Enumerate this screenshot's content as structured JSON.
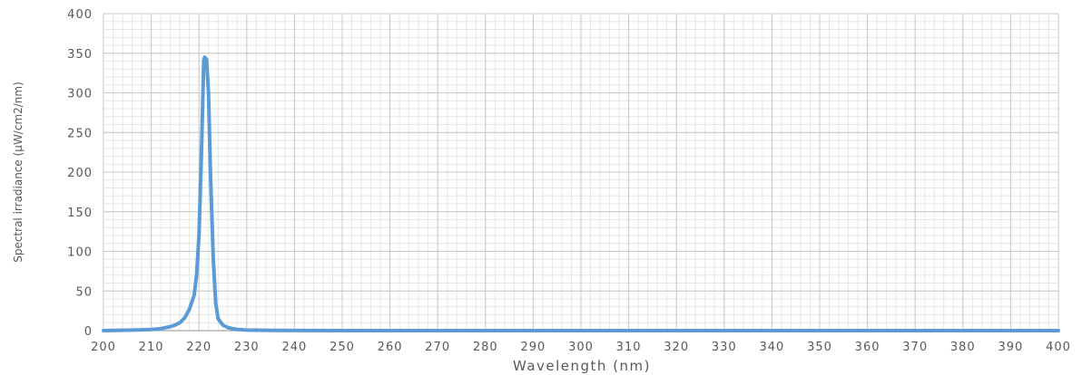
{
  "chart_data": {
    "type": "line",
    "title": "",
    "xlabel": "Wavelength (nm)",
    "ylabel": "Spectral irradiance (μW/cm2/nm)",
    "xlim": [
      200,
      400
    ],
    "ylim": [
      0,
      400
    ],
    "x_ticks": [
      200,
      210,
      220,
      230,
      240,
      250,
      260,
      270,
      280,
      290,
      300,
      310,
      320,
      330,
      340,
      350,
      360,
      370,
      380,
      390,
      400
    ],
    "y_ticks": [
      0,
      50,
      100,
      150,
      200,
      250,
      300,
      350,
      400
    ],
    "grid": {
      "major": true,
      "minor": true,
      "x_minor_step": 2,
      "y_minor_step": 10
    },
    "series": [
      {
        "name": "",
        "color": "#5b9bd5",
        "x": [
          200,
          205,
          208,
          210,
          212,
          214,
          215,
          216,
          217,
          218,
          219,
          219.5,
          220,
          220.5,
          221,
          221.2,
          221.6,
          222,
          222.4,
          223,
          223.5,
          224,
          225,
          226,
          227,
          228,
          230,
          235,
          240,
          250,
          300,
          350,
          400
        ],
        "y": [
          0,
          0.5,
          1,
          1.5,
          2.5,
          5,
          7,
          10,
          16,
          27,
          45,
          70,
          120,
          220,
          340,
          345,
          342,
          300,
          200,
          90,
          35,
          15,
          7,
          4,
          2.5,
          1.5,
          0.7,
          0.3,
          0.1,
          0,
          0,
          0,
          0
        ]
      }
    ]
  }
}
